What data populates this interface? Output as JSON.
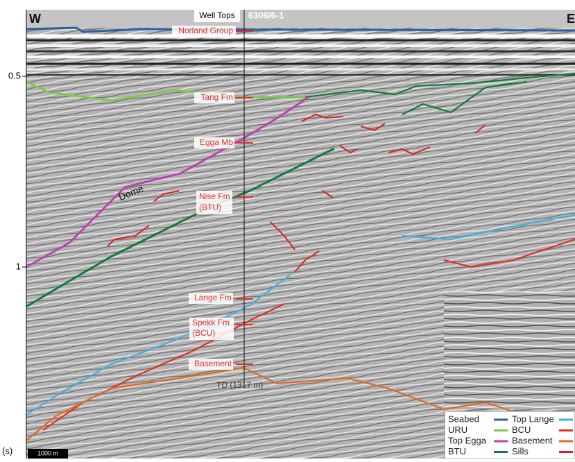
{
  "compass": {
    "west": "W",
    "east": "E"
  },
  "well": {
    "header": "Well Tops",
    "name": "6306/6-1",
    "td": "TD (1317 m)",
    "tops": [
      [
        "Norland Group"
      ],
      [
        "Tang Fm"
      ],
      [
        "Egga Mb"
      ],
      [
        "Nise Fm",
        "(BTU)"
      ],
      [
        "Lange Fm"
      ],
      [
        "Spekk Fm",
        "(BCU)"
      ],
      [
        "Basement"
      ]
    ]
  },
  "axis": {
    "ticks": [
      "0.5",
      "1"
    ],
    "unit": "(s)"
  },
  "scale_bar": "1000 m",
  "annotation": "Dome",
  "legend": [
    {
      "name": "Seabed",
      "color": "#2e5fa3"
    },
    {
      "name": "URU",
      "color": "#7ec850"
    },
    {
      "name": "Top Egga",
      "color": "#c040b0"
    },
    {
      "name": "BTU",
      "color": "#137a3a"
    },
    {
      "name": "Top Lange",
      "color": "#40b0e0"
    },
    {
      "name": "BCU",
      "color": "#e03020"
    },
    {
      "name": "Basement",
      "color": "#e06a20"
    },
    {
      "name": "Sills",
      "color": "#e02020"
    }
  ]
}
